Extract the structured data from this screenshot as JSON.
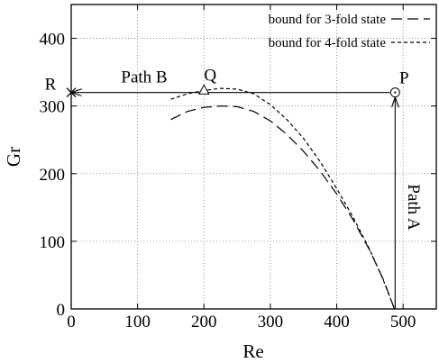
{
  "chart_data": {
    "type": "line",
    "xlabel": "Re",
    "ylabel": "Gr",
    "xlim": [
      0,
      550
    ],
    "ylim": [
      0,
      450
    ],
    "x_ticks": [
      0,
      100,
      200,
      300,
      400,
      500
    ],
    "y_ticks": [
      0,
      100,
      200,
      300,
      400
    ],
    "grid": true,
    "legend_position": "top-right",
    "series": [
      {
        "name": "bound for 3-fold state",
        "style": "long-dash",
        "x": [
          150,
          175,
          200,
          225,
          250,
          275,
          300,
          325,
          350,
          375,
          400,
          425,
          450,
          470,
          487
        ],
        "y": [
          280,
          292,
          298,
          300,
          299,
          292,
          278,
          258,
          233,
          204,
          170,
          131,
          86,
          44,
          0
        ]
      },
      {
        "name": "bound for 4-fold state",
        "style": "short-dash",
        "x": [
          150,
          175,
          200,
          225,
          250,
          275,
          300,
          325,
          350,
          375,
          400,
          425,
          450,
          470,
          487
        ],
        "y": [
          310,
          318,
          323,
          326,
          325,
          318,
          302,
          280,
          252,
          218,
          178,
          135,
          87,
          43,
          0
        ]
      }
    ],
    "annotations": {
      "horizontal_arrow": {
        "from": [
          488,
          320
        ],
        "to": [
          0,
          320
        ],
        "label": "Path B"
      },
      "vertical_arrow": {
        "from": [
          488,
          0
        ],
        "to": [
          488,
          320
        ],
        "label": "Path A"
      },
      "points": [
        {
          "label": "P",
          "x": 488,
          "y": 320,
          "marker": "circle-dot"
        },
        {
          "label": "Q",
          "x": 200,
          "y": 323,
          "marker": "triangle"
        },
        {
          "label": "R",
          "x": 0,
          "y": 320,
          "marker": "cross"
        }
      ]
    }
  }
}
